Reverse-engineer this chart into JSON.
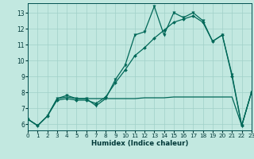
{
  "xlabel": "Humidex (Indice chaleur)",
  "bg_color": "#c2e8e0",
  "grid_color": "#a0d0c8",
  "line_color": "#006858",
  "xlim": [
    0,
    23
  ],
  "ylim": [
    5.6,
    13.6
  ],
  "xticks": [
    0,
    1,
    2,
    3,
    4,
    5,
    6,
    7,
    8,
    9,
    10,
    11,
    12,
    13,
    14,
    15,
    16,
    17,
    18,
    19,
    20,
    21,
    22,
    23
  ],
  "yticks": [
    6,
    7,
    8,
    9,
    10,
    11,
    12,
    13
  ],
  "line_jagged": {
    "x": [
      0,
      1,
      2,
      3,
      4,
      5,
      6,
      7,
      8,
      9,
      10,
      11,
      12,
      13,
      14,
      15,
      16,
      17,
      18,
      19,
      20,
      21,
      22,
      23
    ],
    "y": [
      6.3,
      5.9,
      6.5,
      7.6,
      7.8,
      7.6,
      7.6,
      7.15,
      7.6,
      8.8,
      9.7,
      11.6,
      11.8,
      13.4,
      11.6,
      13.0,
      12.7,
      13.0,
      12.5,
      11.2,
      11.6,
      9.1,
      5.9,
      8.0
    ]
  },
  "line_flat": {
    "x": [
      0,
      1,
      2,
      3,
      4,
      5,
      6,
      7,
      8,
      9,
      10,
      11,
      12,
      13,
      14,
      15,
      16,
      17,
      18,
      19,
      20,
      21,
      22,
      23
    ],
    "y": [
      6.3,
      5.9,
      6.5,
      7.6,
      7.7,
      7.6,
      7.6,
      7.6,
      7.6,
      7.6,
      7.6,
      7.6,
      7.65,
      7.65,
      7.65,
      7.7,
      7.7,
      7.7,
      7.7,
      7.7,
      7.7,
      7.7,
      5.9,
      8.0
    ]
  },
  "line_diag": {
    "x": [
      0,
      1,
      2,
      3,
      4,
      5,
      6,
      7,
      8,
      9,
      10,
      11,
      12,
      13,
      14,
      15,
      16,
      17,
      18,
      19,
      20,
      21,
      22,
      23
    ],
    "y": [
      6.3,
      5.9,
      6.5,
      7.5,
      7.6,
      7.5,
      7.5,
      7.3,
      7.7,
      8.6,
      9.4,
      10.3,
      10.8,
      11.4,
      11.9,
      12.4,
      12.6,
      12.8,
      12.4,
      11.2,
      11.6,
      9.0,
      5.9,
      8.0
    ]
  }
}
